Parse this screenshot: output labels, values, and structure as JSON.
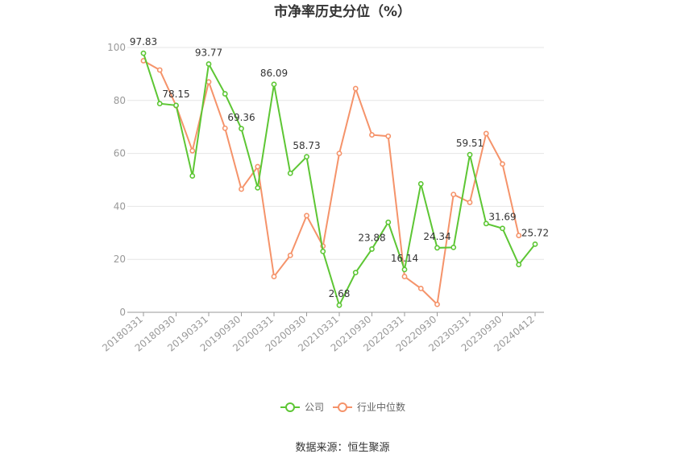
{
  "chart_data": {
    "type": "line",
    "title": "市净率历史分位（%）",
    "source_text": "数据来源：恒生聚源",
    "ylim": [
      0,
      100
    ],
    "y_ticks": [
      "0",
      "20",
      "40",
      "60",
      "80",
      "100"
    ],
    "x_tick_labels": [
      "20180331",
      "20180930",
      "20190331",
      "20190930",
      "20200331",
      "20200930",
      "20210331",
      "20210930",
      "20220331",
      "20220930",
      "20230331",
      "20230930",
      "20240412"
    ],
    "x": [
      "20180331",
      "20180630",
      "20180930",
      "20181231",
      "20190331",
      "20190630",
      "20190930",
      "20191231",
      "20200331",
      "20200630",
      "20200930",
      "20201231",
      "20210331",
      "20210630",
      "20210930",
      "20211231",
      "20220331",
      "20220630",
      "20220930",
      "20221231",
      "20230331",
      "20230630",
      "20230930",
      "20231231",
      "20240412"
    ],
    "series": [
      {
        "name": "公司",
        "color": "#5dc634",
        "values": [
          97.83,
          78.8,
          78.15,
          51.5,
          93.77,
          82.5,
          69.36,
          47.0,
          86.09,
          52.5,
          58.73,
          23.0,
          2.68,
          15.0,
          23.88,
          34.0,
          16.14,
          48.5,
          24.34,
          24.5,
          59.51,
          33.5,
          31.69,
          18.0,
          25.72
        ],
        "labels": [
          "97.83",
          "",
          "78.15",
          "",
          "93.77",
          "",
          "69.36",
          "",
          "86.09",
          "",
          "58.73",
          "",
          "2.68",
          "",
          "23.88",
          "",
          "16.14",
          "",
          "24.34",
          "",
          "59.51",
          "",
          "31.69",
          "",
          "25.72"
        ]
      },
      {
        "name": "行业中位数",
        "color": "#f5936a",
        "values": [
          95.0,
          91.5,
          78.0,
          61.0,
          87.0,
          69.5,
          46.5,
          55.0,
          13.5,
          21.5,
          36.5,
          25.0,
          60.0,
          84.5,
          67.0,
          66.5,
          13.5,
          9.0,
          3.0,
          44.5,
          41.5,
          67.5,
          56.0,
          29.0,
          null
        ],
        "labels": []
      }
    ],
    "grid": true,
    "legend_position": "bottom"
  }
}
